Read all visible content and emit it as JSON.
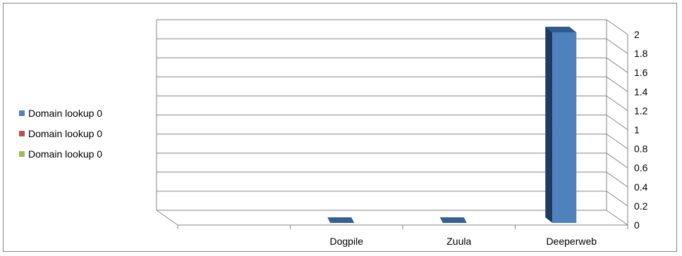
{
  "chart_data": {
    "type": "bar",
    "categories": [
      "",
      "Dogpile",
      "Zuula",
      "Deeperweb"
    ],
    "series": [
      {
        "name": "Domain lookup 0",
        "color": "#4F81BD",
        "values": [
          0,
          0,
          0,
          2
        ]
      },
      {
        "name": "Domain lookup 0",
        "color": "#C0504D",
        "values": [
          0,
          0,
          0,
          0
        ]
      },
      {
        "name": "Domain lookup 0",
        "color": "#9BBB59",
        "values": [
          0,
          0,
          0,
          0
        ]
      }
    ],
    "yticks": [
      "0",
      "0.2",
      "0.4",
      "0.6",
      "0.8",
      "1",
      "1.2",
      "1.4",
      "1.6",
      "1.8",
      "2"
    ],
    "ylim": [
      0,
      2
    ],
    "grid": true,
    "legend_position": "left",
    "three_d": true
  }
}
